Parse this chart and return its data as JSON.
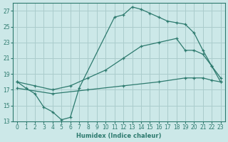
{
  "xlabel": "Humidex (Indice chaleur)",
  "bg_color": "#cce8e8",
  "grid_color": "#aacccc",
  "line_color": "#2d7a6e",
  "xlim": [
    -0.5,
    23.5
  ],
  "ylim": [
    13,
    28
  ],
  "yticks": [
    13,
    15,
    17,
    19,
    21,
    23,
    25,
    27
  ],
  "xticks": [
    0,
    1,
    2,
    3,
    4,
    5,
    6,
    7,
    8,
    9,
    10,
    11,
    12,
    13,
    14,
    15,
    16,
    17,
    18,
    19,
    20,
    21,
    22,
    23
  ],
  "line1_x": [
    0,
    1,
    2,
    3,
    4,
    5,
    6,
    7,
    11,
    12,
    13,
    14,
    15,
    16,
    17,
    18,
    19,
    20,
    21,
    22,
    23
  ],
  "line1_y": [
    18,
    17.2,
    16.5,
    14.8,
    14.2,
    13.2,
    13.5,
    17.2,
    26.2,
    26.5,
    27.5,
    27.2,
    26.7,
    26.2,
    25.7,
    25.5,
    25.3,
    24.2,
    22.0,
    20.0,
    18.0
  ],
  "line2_x": [
    0,
    2,
    4,
    6,
    8,
    10,
    12,
    14,
    16,
    18,
    19,
    20,
    21,
    22,
    23
  ],
  "line2_y": [
    18.0,
    17.5,
    17.0,
    17.5,
    18.5,
    19.5,
    21.0,
    22.5,
    23.0,
    23.5,
    22.0,
    22.0,
    21.5,
    20.0,
    18.5
  ],
  "line3_x": [
    0,
    4,
    8,
    12,
    16,
    19,
    20,
    21,
    22,
    23
  ],
  "line3_y": [
    17.2,
    16.5,
    17.0,
    17.5,
    18.0,
    18.5,
    18.5,
    18.5,
    18.2,
    18.0
  ]
}
